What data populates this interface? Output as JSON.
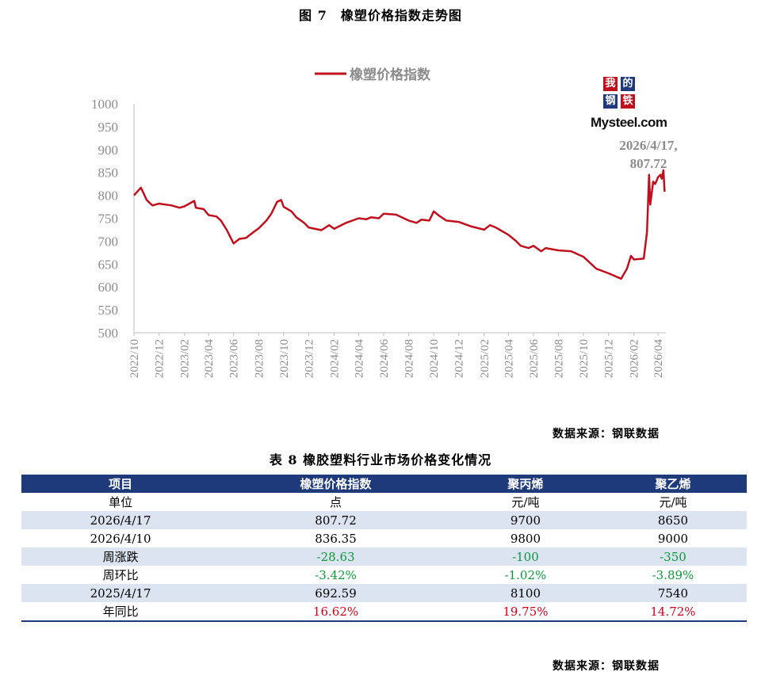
{
  "figure_title": "图 7　橡塑价格指数走势图",
  "chart_data": {
    "type": "line",
    "title": "",
    "series": [
      {
        "name": "橡塑价格指数",
        "color": "#c0101e",
        "points": [
          [
            "2022/10",
            800
          ],
          [
            "2022/10/18",
            817
          ],
          [
            "2022/11",
            790
          ],
          [
            "2022/11/15",
            778
          ],
          [
            "2022/12",
            782
          ],
          [
            "2023/01",
            778
          ],
          [
            "2023/01/20",
            773
          ],
          [
            "2023/02",
            776
          ],
          [
            "2023/02/25",
            788
          ],
          [
            "2023/03",
            773
          ],
          [
            "2023/03/20",
            770
          ],
          [
            "2023/04",
            757
          ],
          [
            "2023/04/20",
            754
          ],
          [
            "2023/05",
            745
          ],
          [
            "2023/05/15",
            725
          ],
          [
            "2023/06",
            695
          ],
          [
            "2023/06/15",
            705
          ],
          [
            "2023/07",
            707
          ],
          [
            "2023/07/20",
            720
          ],
          [
            "2023/08",
            728
          ],
          [
            "2023/08/20",
            745
          ],
          [
            "2023/09",
            760
          ],
          [
            "2023/09/15",
            786
          ],
          [
            "2023/09/25",
            790
          ],
          [
            "2023/10",
            775
          ],
          [
            "2023/10/20",
            765
          ],
          [
            "2023/11",
            752
          ],
          [
            "2023/11/20",
            740
          ],
          [
            "2023/12",
            730
          ],
          [
            "2024/01",
            724
          ],
          [
            "2024/01/20",
            735
          ],
          [
            "2024/02",
            727
          ],
          [
            "2024/03",
            740
          ],
          [
            "2024/04",
            750
          ],
          [
            "2024/04/20",
            748
          ],
          [
            "2024/05",
            752
          ],
          [
            "2024/05/20",
            750
          ],
          [
            "2024/06",
            760
          ],
          [
            "2024/07",
            758
          ],
          [
            "2024/08",
            745
          ],
          [
            "2024/08/20",
            740
          ],
          [
            "2024/09",
            747
          ],
          [
            "2024/09/20",
            745
          ],
          [
            "2024/10",
            765
          ],
          [
            "2024/10/15",
            755
          ],
          [
            "2024/11",
            745
          ],
          [
            "2024/12",
            742
          ],
          [
            "2025/01",
            732
          ],
          [
            "2025/02",
            725
          ],
          [
            "2025/02/15",
            735
          ],
          [
            "2025/03",
            730
          ],
          [
            "2025/04",
            714
          ],
          [
            "2025/04/20",
            700
          ],
          [
            "2025/05",
            690
          ],
          [
            "2025/05/20",
            685
          ],
          [
            "2025/06",
            690
          ],
          [
            "2025/06/20",
            678
          ],
          [
            "2025/07",
            685
          ],
          [
            "2025/08",
            680
          ],
          [
            "2025/09",
            678
          ],
          [
            "2025/10",
            666
          ],
          [
            "2025/11",
            640
          ],
          [
            "2025/12",
            630
          ],
          [
            "2026/01",
            618
          ],
          [
            "2026/01/15",
            640
          ],
          [
            "2026/01/25",
            668
          ],
          [
            "2026/02",
            660
          ],
          [
            "2026/02/25",
            662
          ],
          [
            "2026/03/05",
            720
          ],
          [
            "2026/03/10",
            845
          ],
          [
            "2026/03/13",
            780
          ],
          [
            "2026/03/20",
            830
          ],
          [
            "2026/03/25",
            825
          ],
          [
            "2026/04/01",
            840
          ],
          [
            "2026/04/07",
            845
          ],
          [
            "2026/04/10",
            836.35
          ],
          [
            "2026/04/14",
            855
          ],
          [
            "2026/04/17",
            807.72
          ]
        ]
      }
    ],
    "x_tick_labels": [
      "2022/10",
      "2022/12",
      "2023/02",
      "2023/04",
      "2023/06",
      "2023/08",
      "2023/10",
      "2023/12",
      "2024/02",
      "2024/04",
      "2024/06",
      "2024/08",
      "2024/10",
      "2024/12",
      "2025/02",
      "2025/04",
      "2025/06",
      "2025/08",
      "2025/10",
      "2025/12",
      "2026/02",
      "2026/04"
    ],
    "y_ticks": [
      500,
      550,
      600,
      650,
      700,
      750,
      800,
      850,
      900,
      950,
      1000
    ],
    "ylim": [
      500,
      1000
    ],
    "xlim": [
      "2022/10",
      "2026/04/20"
    ],
    "grid": false,
    "legend_position": "top-center",
    "annotation": {
      "line1": "2026/4/17,",
      "line2": "807.72"
    }
  },
  "logo": {
    "chars": [
      "我",
      "的",
      "钢",
      "铁"
    ],
    "colors": [
      "#c0101e",
      "#1f3a7a",
      "#1f3a7a",
      "#c0101e"
    ],
    "word": "Mysteel.com"
  },
  "source_label": "数据来源：钢联数据",
  "table_title": "表 8 橡胶塑料行业市场价格变化情况",
  "table": {
    "headers": [
      "项目",
      "橡塑价格指数",
      "聚丙烯",
      "聚乙烯"
    ],
    "rows": [
      {
        "cells": [
          "单位",
          "点",
          "元/吨",
          "元/吨"
        ],
        "tone": ""
      },
      {
        "cells": [
          "2026/4/17",
          "807.72",
          "9700",
          "8650"
        ],
        "tone": ""
      },
      {
        "cells": [
          "2026/4/10",
          "836.35",
          "9800",
          "9000"
        ],
        "tone": ""
      },
      {
        "cells": [
          "周涨跌",
          "-28.63",
          "-100",
          "-350"
        ],
        "tone": "green"
      },
      {
        "cells": [
          "周环比",
          "-3.42%",
          "-1.02%",
          "-3.89%"
        ],
        "tone": "green"
      },
      {
        "cells": [
          "2025/4/17",
          "692.59",
          "8100",
          "7540"
        ],
        "tone": ""
      },
      {
        "cells": [
          "年同比",
          "16.62%",
          "19.75%",
          "14.72%"
        ],
        "tone": "red"
      }
    ]
  }
}
